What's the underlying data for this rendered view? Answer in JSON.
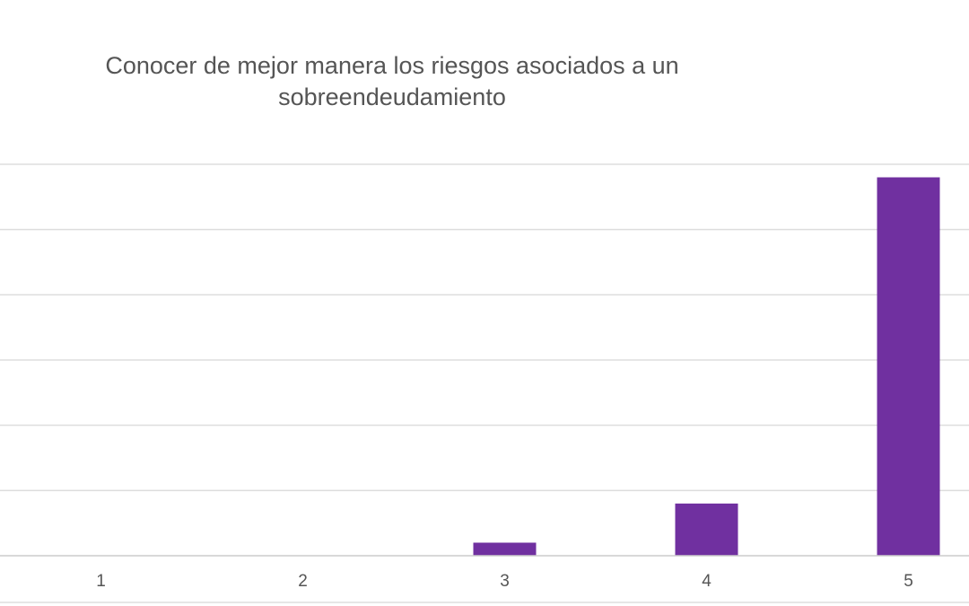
{
  "chart_data": {
    "type": "bar",
    "title_lines": [
      "Conocer de mejor manera los riesgos asociados a un",
      "sobreendeudamiento"
    ],
    "categories": [
      "1",
      "2",
      "3",
      "4",
      "5"
    ],
    "values": [
      0,
      0,
      2,
      8,
      58
    ],
    "ylim": [
      0,
      60
    ],
    "y_gridline_step": 10,
    "grid": true,
    "legend": "none",
    "xlabel": "",
    "ylabel": "",
    "bar_color": "#7030a0"
  }
}
